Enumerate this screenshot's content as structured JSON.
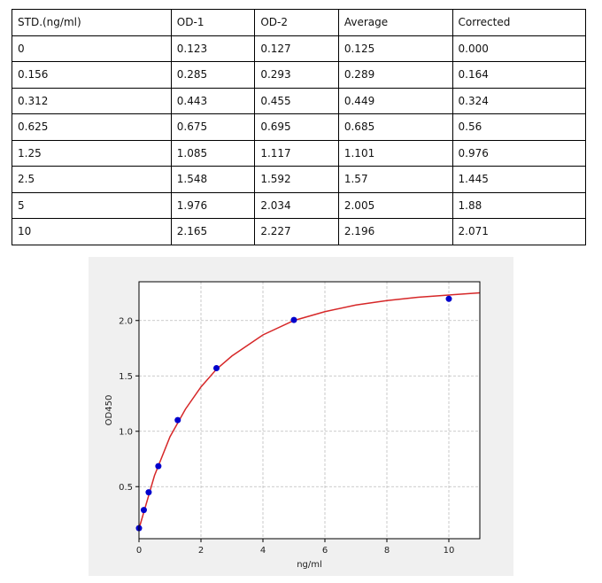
{
  "table": {
    "columns": [
      "STD.(ng/ml)",
      "OD-1",
      "OD-2",
      "Average",
      "Corrected"
    ],
    "rows": [
      [
        "0",
        "0.123",
        "0.127",
        "0.125",
        "0.000"
      ],
      [
        "0.156",
        "0.285",
        "0.293",
        "0.289",
        "0.164"
      ],
      [
        "0.312",
        "0.443",
        "0.455",
        "0.449",
        "0.324"
      ],
      [
        "0.625",
        "0.675",
        "0.695",
        "0.685",
        "0.56"
      ],
      [
        "1.25",
        "1.085",
        "1.117",
        "1.101",
        "0.976"
      ],
      [
        "2.5",
        "1.548",
        "1.592",
        "1.57",
        "1.445"
      ],
      [
        "5",
        "1.976",
        "2.034",
        "2.005",
        "1.88"
      ],
      [
        "10",
        "2.165",
        "2.227",
        "2.196",
        "2.071"
      ]
    ]
  },
  "chart_data": {
    "type": "scatter",
    "xlabel": "ng/ml",
    "ylabel": "OD450",
    "series": [
      {
        "type": "line",
        "color": "#d62728",
        "x": [
          0,
          0.5,
          1,
          1.5,
          2,
          2.5,
          3,
          4,
          5,
          6,
          7,
          8,
          9,
          10,
          11
        ],
        "values": [
          0.12,
          0.6,
          0.95,
          1.2,
          1.4,
          1.56,
          1.68,
          1.87,
          2.0,
          2.08,
          2.14,
          2.18,
          2.21,
          2.23,
          2.25
        ]
      },
      {
        "type": "scatter",
        "color": "#0000cc",
        "x": [
          0,
          0.156,
          0.312,
          0.625,
          1.25,
          2.5,
          5,
          10
        ],
        "values": [
          0.125,
          0.289,
          0.449,
          0.685,
          1.101,
          1.57,
          2.005,
          2.196
        ]
      }
    ],
    "xlim": [
      0,
      11
    ],
    "xticks": [
      0,
      2,
      4,
      6,
      8,
      10
    ],
    "ylim": [
      0.03,
      2.35
    ],
    "yticks": [
      {
        "value": 0.5,
        "label": "0.5"
      },
      {
        "value": 1,
        "label": "1.0"
      },
      {
        "value": 1.5,
        "label": "1.5"
      },
      {
        "value": 2,
        "label": "2.0"
      }
    ],
    "grid": true
  }
}
